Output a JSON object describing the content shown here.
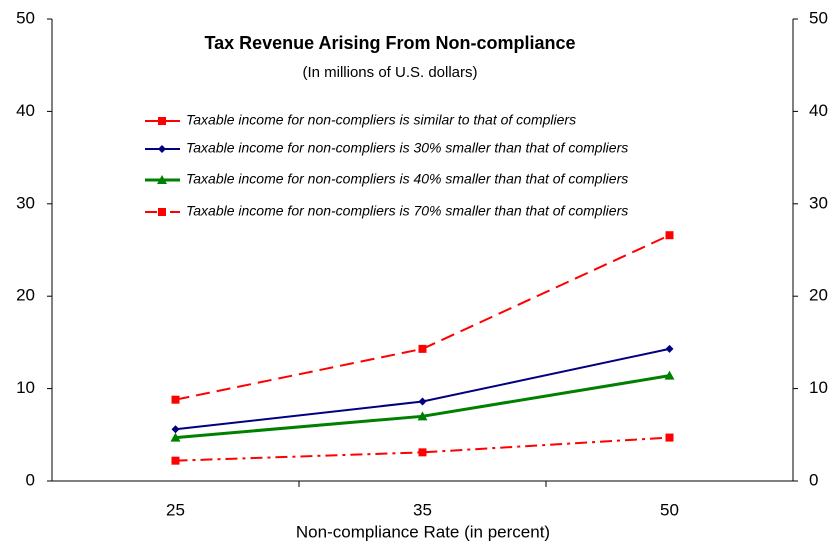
{
  "chart_data": {
    "type": "line",
    "title": "Tax Revenue Arising From Non-compliance",
    "subtitle": "(In millions of U.S. dollars)",
    "x_label": "Non-compliance Rate (in percent)",
    "categories": [
      "25",
      "35",
      "50"
    ],
    "series": [
      {
        "name": "Taxable income for non-compliers is similar to that of compliers",
        "color": "#ff0000",
        "dash": "dashed",
        "marker": "square",
        "values": [
          8.8,
          14.3,
          26.6
        ]
      },
      {
        "name": "Taxable income for non-compliers is 30% smaller than that of compliers",
        "color": "#000080",
        "dash": "solid",
        "marker": "diamond",
        "values": [
          5.6,
          8.6,
          14.3
        ]
      },
      {
        "name": "Taxable income for non-compliers is 40% smaller than that of compliers",
        "color": "#008000",
        "dash": "solid",
        "marker": "triangle",
        "values": [
          4.7,
          7.0,
          11.4
        ]
      },
      {
        "name": "Taxable income for non-compliers is 70% smaller than that of compliers",
        "color": "#ff0000",
        "dash": "dashdot",
        "marker": "square",
        "values": [
          2.2,
          3.1,
          4.7
        ]
      }
    ],
    "ylim": [
      0,
      50
    ],
    "yticks": [
      0,
      10,
      20,
      30,
      40,
      50
    ],
    "y2lim": [
      0,
      50
    ],
    "y2ticks": [
      0,
      10,
      20,
      30,
      40,
      50
    ],
    "grid": false
  }
}
